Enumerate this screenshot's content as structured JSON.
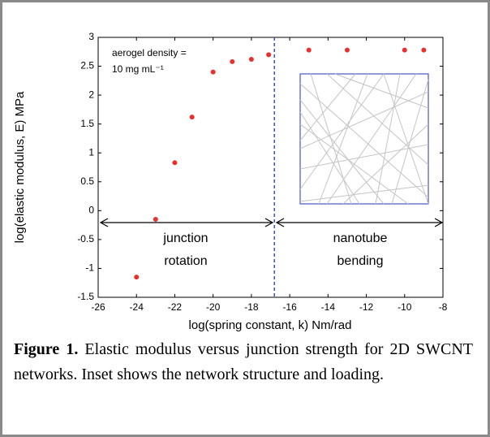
{
  "chart_data": {
    "type": "scatter",
    "x": [
      -24,
      -23,
      -22,
      -21.1,
      -20,
      -19,
      -18,
      -17.1,
      -15,
      -13,
      -10,
      -9
    ],
    "values": [
      -1.15,
      -0.15,
      0.83,
      1.62,
      2.4,
      2.58,
      2.62,
      2.7,
      2.78,
      2.78,
      2.78,
      2.78
    ],
    "color": "#e8312f",
    "xlim": [
      -26,
      -8
    ],
    "xticks": [
      -26,
      -24,
      -22,
      -20,
      -18,
      -16,
      -14,
      -12,
      -10,
      -8
    ],
    "ylim": [
      -1.5,
      3
    ],
    "yticks": [
      -1.5,
      -1,
      -0.5,
      0,
      0.5,
      1,
      1.5,
      2,
      2.5,
      3
    ],
    "vline": -16.8,
    "xlabel": "log(spring constant, k) Nm/rad",
    "ylabel": "log(elastic modulus, E) MPa",
    "annotations": [
      "aerogel density =",
      "10 mg mL⁻¹",
      "junction",
      "rotation",
      "nanotube",
      "bending"
    ]
  },
  "caption": {
    "label": "Figure 1.",
    "text": "Elastic modulus versus junction strength for 2D SWCNT networks. Inset shows the network structure and loading."
  }
}
